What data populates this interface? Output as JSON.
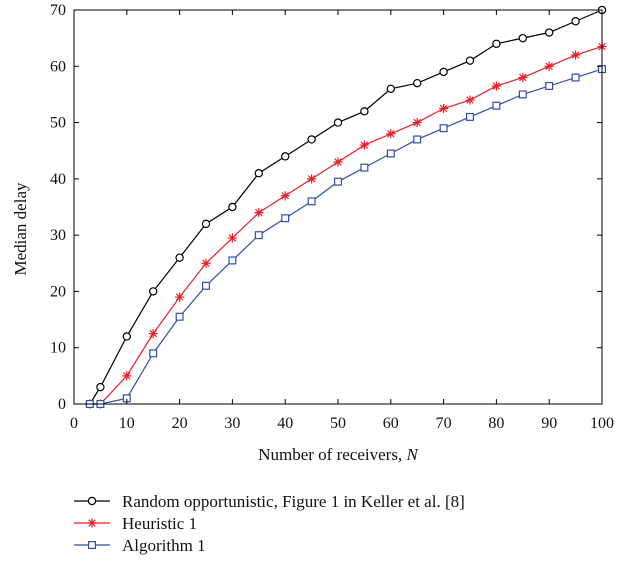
{
  "chart_data": {
    "type": "line",
    "title": "",
    "xlabel": "Number of receivers, ",
    "xlabel_var": "N",
    "ylabel": "Median delay",
    "xlim": [
      0,
      100
    ],
    "ylim": [
      0,
      70
    ],
    "xticks": [
      "0",
      "10",
      "20",
      "30",
      "40",
      "50",
      "60",
      "70",
      "80",
      "90",
      "100"
    ],
    "yticks": [
      "0",
      "10",
      "20",
      "30",
      "40",
      "50",
      "60",
      "70"
    ],
    "grid": false,
    "legend_position": "bottom",
    "series": [
      {
        "name": "Random opportunistic, Figure 1 in Keller et al. [8]",
        "color": "#000000",
        "marker": "circle",
        "x": [
          3,
          5,
          10,
          15,
          20,
          25,
          30,
          35,
          40,
          45,
          50,
          55,
          60,
          65,
          70,
          75,
          80,
          85,
          90,
          95,
          100
        ],
        "y": [
          0,
          3,
          12,
          20,
          26,
          32,
          35,
          41,
          44,
          47,
          50,
          52,
          56,
          57,
          59,
          61,
          64,
          65,
          66,
          68,
          70
        ]
      },
      {
        "name": "Heuristic 1",
        "color": "#e8202a",
        "marker": "star",
        "x": [
          3,
          5,
          10,
          15,
          20,
          25,
          30,
          35,
          40,
          45,
          50,
          55,
          60,
          65,
          70,
          75,
          80,
          85,
          90,
          95,
          100
        ],
        "y": [
          0,
          0,
          5,
          12.5,
          19,
          25,
          29.5,
          34,
          37,
          40,
          43,
          46,
          48,
          50,
          52.5,
          54,
          56.5,
          58,
          60,
          62,
          63.5
        ]
      },
      {
        "name": "Algorithm 1",
        "color": "#2f4fa8",
        "marker": "square",
        "x": [
          3,
          5,
          10,
          15,
          20,
          25,
          30,
          35,
          40,
          45,
          50,
          55,
          60,
          65,
          70,
          75,
          80,
          85,
          90,
          95,
          100
        ],
        "y": [
          0,
          0,
          1,
          9,
          15.5,
          21,
          25.5,
          30,
          33,
          36,
          39.5,
          42,
          44.5,
          47,
          49,
          51,
          53,
          55,
          56.5,
          58,
          59.5
        ]
      }
    ]
  }
}
